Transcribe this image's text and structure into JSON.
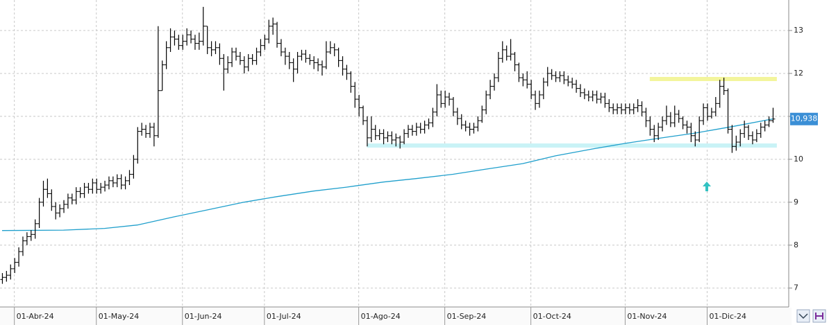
{
  "chart_data": {
    "type": "ohlc",
    "xlim": [
      -0.5,
      191.9
    ],
    "ylim": [
      6.56,
      13.71
    ],
    "yticks": [
      7,
      8,
      9,
      10,
      11,
      12,
      13
    ],
    "xticks": [
      {
        "value": 3,
        "label": "01-Abr-24"
      },
      {
        "value": 23,
        "label": "01-May-24"
      },
      {
        "value": 44,
        "label": "01-Jun-24"
      },
      {
        "value": 64,
        "label": "01-Jul-24"
      },
      {
        "value": 87,
        "label": "01-Ago-24"
      },
      {
        "value": 108,
        "label": "01-Sep-24"
      },
      {
        "value": 129,
        "label": "01-Oct-24"
      },
      {
        "value": 152,
        "label": "01-Nov-24"
      },
      {
        "value": 172,
        "label": "01-Dic-24"
      }
    ],
    "grid": true,
    "color": "#000000",
    "open": [
      7.2,
      7.25,
      7.3,
      7.45,
      7.6,
      7.85,
      8.1,
      8.2,
      8.25,
      8.5,
      9.0,
      9.3,
      9.2,
      8.9,
      8.75,
      8.85,
      8.95,
      9.1,
      9.05,
      9.25,
      9.2,
      9.35,
      9.3,
      9.45,
      9.3,
      9.35,
      9.4,
      9.5,
      9.45,
      9.55,
      9.4,
      9.5,
      9.65,
      10.0,
      10.65,
      10.7,
      10.6,
      10.75,
      10.55,
      11.6,
      12.2,
      12.6,
      12.85,
      12.8,
      12.65,
      12.75,
      12.9,
      12.8,
      12.7,
      12.75,
      13.1,
      12.6,
      12.55,
      12.6,
      12.35,
      12.1,
      12.25,
      12.5,
      12.4,
      12.3,
      12.15,
      12.35,
      12.3,
      12.5,
      12.65,
      12.8,
      13.1,
      13.15,
      12.7,
      12.5,
      12.4,
      12.25,
      12.1,
      12.4,
      12.45,
      12.35,
      12.3,
      12.25,
      12.2,
      12.15,
      12.5,
      12.6,
      12.55,
      12.3,
      12.1,
      12.0,
      11.7,
      11.4,
      11.2,
      10.9,
      10.5,
      10.7,
      10.55,
      10.6,
      10.5,
      10.55,
      10.45,
      10.5,
      10.4,
      10.6,
      10.7,
      10.65,
      10.75,
      10.7,
      10.8,
      10.85,
      11.1,
      11.5,
      11.3,
      11.45,
      11.4,
      11.1,
      10.95,
      10.8,
      10.75,
      10.7,
      10.75,
      10.9,
      11.15,
      11.5,
      11.7,
      11.9,
      12.35,
      12.55,
      12.4,
      12.45,
      12.2,
      11.9,
      11.85,
      11.75,
      11.5,
      11.3,
      11.5,
      11.8,
      12.0,
      11.95,
      11.9,
      11.95,
      11.85,
      11.8,
      11.75,
      11.65,
      11.55,
      11.5,
      11.45,
      11.5,
      11.4,
      11.45,
      11.3,
      11.2,
      11.15,
      11.2,
      11.15,
      11.2,
      11.15,
      11.2,
      11.25,
      11.1,
      10.9,
      10.7,
      10.55,
      10.75,
      10.9,
      11.0,
      10.85,
      11.05,
      10.95,
      10.8,
      10.75,
      10.55,
      10.45,
      10.9,
      11.2,
      11.0,
      11.1,
      11.3,
      11.7,
      11.6,
      10.7,
      10.3,
      10.4,
      10.6,
      10.75,
      10.55,
      10.45,
      10.6,
      10.75,
      10.8,
      10.9
    ],
    "high": [
      7.35,
      7.4,
      7.55,
      7.7,
      7.95,
      8.2,
      8.3,
      8.35,
      8.6,
      9.1,
      9.5,
      9.55,
      9.3,
      9.0,
      8.95,
      9.05,
      9.2,
      9.2,
      9.35,
      9.35,
      9.45,
      9.45,
      9.55,
      9.55,
      9.45,
      9.5,
      9.6,
      9.6,
      9.65,
      9.65,
      9.6,
      9.75,
      10.1,
      10.75,
      10.85,
      10.8,
      10.85,
      10.85,
      13.1,
      12.3,
      12.75,
      13.05,
      13.0,
      12.9,
      12.9,
      13.05,
      13.0,
      12.9,
      12.95,
      13.55,
      13.1,
      12.75,
      12.75,
      12.7,
      12.45,
      12.4,
      12.6,
      12.6,
      12.5,
      12.4,
      12.45,
      12.45,
      12.6,
      12.8,
      12.9,
      13.25,
      13.3,
      13.2,
      12.8,
      12.6,
      12.5,
      12.35,
      12.5,
      12.55,
      12.55,
      12.45,
      12.4,
      12.35,
      12.3,
      12.75,
      12.75,
      12.7,
      12.6,
      12.4,
      12.2,
      12.05,
      11.8,
      11.5,
      11.25,
      11.0,
      11.0,
      10.8,
      10.7,
      10.7,
      10.65,
      10.65,
      10.6,
      10.55,
      10.7,
      10.8,
      10.8,
      10.85,
      10.85,
      10.9,
      10.95,
      11.2,
      11.75,
      11.6,
      11.6,
      11.55,
      11.45,
      11.2,
      11.05,
      10.9,
      10.85,
      10.85,
      11.0,
      11.25,
      11.6,
      11.85,
      12.0,
      12.5,
      12.75,
      12.65,
      12.8,
      12.5,
      12.25,
      12.0,
      12.05,
      11.85,
      11.6,
      11.6,
      11.9,
      12.15,
      12.1,
      12.05,
      12.05,
      12.05,
      11.95,
      11.9,
      11.85,
      11.75,
      11.65,
      11.6,
      11.6,
      11.6,
      11.55,
      11.55,
      11.4,
      11.3,
      11.3,
      11.3,
      11.3,
      11.3,
      11.3,
      11.4,
      11.35,
      11.2,
      11.0,
      10.8,
      10.85,
      11.0,
      11.25,
      11.1,
      11.25,
      11.15,
      11.0,
      10.9,
      10.85,
      10.65,
      11.0,
      11.3,
      11.3,
      11.2,
      11.45,
      11.85,
      11.9,
      11.65,
      10.8,
      10.55,
      10.7,
      10.9,
      10.8,
      10.65,
      10.7,
      10.85,
      10.9,
      11.0,
      11.2
    ],
    "low": [
      7.1,
      7.15,
      7.2,
      7.35,
      7.5,
      7.75,
      8.0,
      8.1,
      8.15,
      8.4,
      8.9,
      9.1,
      8.8,
      8.6,
      8.65,
      8.75,
      8.85,
      8.95,
      8.95,
      9.1,
      9.1,
      9.2,
      9.2,
      9.2,
      9.2,
      9.25,
      9.3,
      9.35,
      9.35,
      9.3,
      9.3,
      9.4,
      9.55,
      9.9,
      10.55,
      10.5,
      10.5,
      10.3,
      10.5,
      11.6,
      12.1,
      12.5,
      12.65,
      12.55,
      12.55,
      12.65,
      12.7,
      12.55,
      12.55,
      12.65,
      12.45,
      12.4,
      12.45,
      12.2,
      11.6,
      12.0,
      12.15,
      12.3,
      12.2,
      12.0,
      12.05,
      12.2,
      12.2,
      12.4,
      12.55,
      12.7,
      12.9,
      12.6,
      12.4,
      12.2,
      12.1,
      11.8,
      12.0,
      12.3,
      12.25,
      12.2,
      12.1,
      12.05,
      11.95,
      12.1,
      12.45,
      12.4,
      12.15,
      11.95,
      11.85,
      11.55,
      11.2,
      11.0,
      10.8,
      10.3,
      10.4,
      10.45,
      10.45,
      10.35,
      10.4,
      10.35,
      10.3,
      10.25,
      10.35,
      10.5,
      10.55,
      10.55,
      10.6,
      10.6,
      10.7,
      10.75,
      11.0,
      11.2,
      11.2,
      11.25,
      11.0,
      10.8,
      10.7,
      10.65,
      10.55,
      10.6,
      10.65,
      10.85,
      11.05,
      11.4,
      11.6,
      11.8,
      12.25,
      12.3,
      12.3,
      12.05,
      11.8,
      11.7,
      11.65,
      11.4,
      11.15,
      11.2,
      11.4,
      11.7,
      11.85,
      11.8,
      11.8,
      11.75,
      11.7,
      11.65,
      11.55,
      11.45,
      11.4,
      11.35,
      11.35,
      11.3,
      11.3,
      11.2,
      11.1,
      11.05,
      11.05,
      11.05,
      11.05,
      11.05,
      11.05,
      11.1,
      11.0,
      10.75,
      10.55,
      10.4,
      10.45,
      10.65,
      10.8,
      10.75,
      10.75,
      10.85,
      10.7,
      10.6,
      10.4,
      10.3,
      10.4,
      10.8,
      10.9,
      10.95,
      11.0,
      11.2,
      11.5,
      10.6,
      10.15,
      10.2,
      10.3,
      10.5,
      10.45,
      10.35,
      10.4,
      10.5,
      10.65,
      10.75,
      10.85
    ],
    "close": [
      7.25,
      7.3,
      7.45,
      7.6,
      7.85,
      8.1,
      8.2,
      8.25,
      8.5,
      9.0,
      9.3,
      9.2,
      8.9,
      8.75,
      8.85,
      8.95,
      9.1,
      9.05,
      9.25,
      9.2,
      9.35,
      9.3,
      9.45,
      9.3,
      9.35,
      9.4,
      9.5,
      9.45,
      9.55,
      9.4,
      9.5,
      9.65,
      10.0,
      10.65,
      10.7,
      10.6,
      10.75,
      10.55,
      11.6,
      12.2,
      12.6,
      12.85,
      12.8,
      12.65,
      12.75,
      12.9,
      12.8,
      12.7,
      12.75,
      13.1,
      12.6,
      12.55,
      12.6,
      12.35,
      12.1,
      12.25,
      12.5,
      12.4,
      12.3,
      12.15,
      12.35,
      12.3,
      12.5,
      12.65,
      12.8,
      13.1,
      13.15,
      12.7,
      12.5,
      12.4,
      12.25,
      12.1,
      12.4,
      12.45,
      12.35,
      12.3,
      12.25,
      12.2,
      12.15,
      12.5,
      12.6,
      12.55,
      12.3,
      12.1,
      12.0,
      11.7,
      11.4,
      11.2,
      10.9,
      10.5,
      10.7,
      10.55,
      10.6,
      10.5,
      10.55,
      10.45,
      10.5,
      10.4,
      10.6,
      10.7,
      10.65,
      10.75,
      10.7,
      10.8,
      10.85,
      11.1,
      11.5,
      11.3,
      11.45,
      11.4,
      11.1,
      10.95,
      10.8,
      10.75,
      10.7,
      10.75,
      10.9,
      11.15,
      11.5,
      11.7,
      11.9,
      12.35,
      12.55,
      12.4,
      12.45,
      12.2,
      11.9,
      11.85,
      11.75,
      11.5,
      11.3,
      11.5,
      11.8,
      12.0,
      11.95,
      11.9,
      11.95,
      11.85,
      11.8,
      11.75,
      11.65,
      11.55,
      11.5,
      11.45,
      11.5,
      11.4,
      11.45,
      11.3,
      11.2,
      11.15,
      11.2,
      11.15,
      11.2,
      11.15,
      11.2,
      11.25,
      11.1,
      10.9,
      10.7,
      10.55,
      10.75,
      10.9,
      11.0,
      10.85,
      11.05,
      10.95,
      10.8,
      10.75,
      10.55,
      10.45,
      10.9,
      11.2,
      11.0,
      11.1,
      11.3,
      11.7,
      11.6,
      10.7,
      10.3,
      10.4,
      10.6,
      10.75,
      10.55,
      10.45,
      10.6,
      10.75,
      10.8,
      10.9,
      10.938
    ],
    "moving_average": {
      "color": "#1f9fcc",
      "x": [
        0,
        15,
        25,
        33,
        42,
        50,
        59,
        67,
        76,
        84,
        93,
        101,
        110,
        118,
        127,
        135,
        144,
        152,
        161,
        169,
        178,
        188
      ],
      "values": [
        8.34,
        8.35,
        8.39,
        8.47,
        8.66,
        8.82,
        9.0,
        9.13,
        9.26,
        9.35,
        9.47,
        9.55,
        9.65,
        9.77,
        9.9,
        10.08,
        10.24,
        10.37,
        10.5,
        10.61,
        10.76,
        10.94
      ]
    },
    "levels": [
      {
        "value": 11.87,
        "from": 158,
        "to": 189,
        "color": "#f3f59c"
      },
      {
        "value": 10.32,
        "from": 89,
        "to": 189,
        "color": "#c9f3f6"
      }
    ],
    "last_value_label": "10,938",
    "last_value_color": "#3b8fd6"
  }
}
